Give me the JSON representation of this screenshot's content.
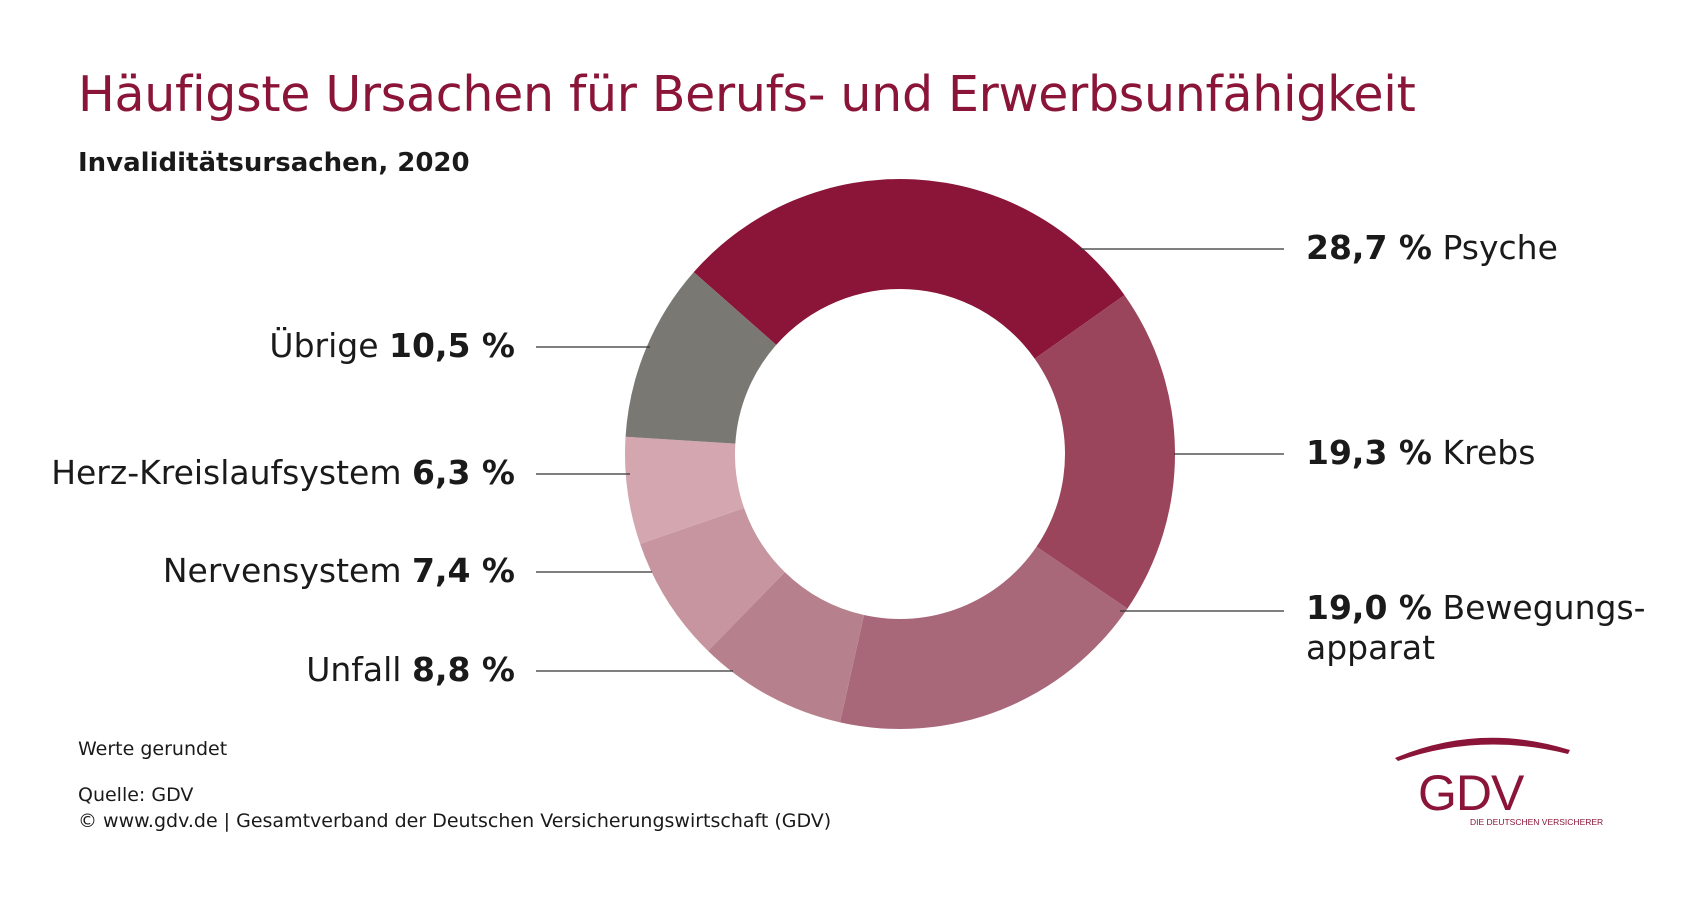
{
  "title": "Häufigste Ursachen für Berufs- und Erwerbsunfähigkeit",
  "subtitle": "Invaliditätsursachen, 2020",
  "colors": {
    "title": "#8a1538",
    "slices": [
      "#8a1538",
      "#9b455d",
      "#a8687a",
      "#b7808d",
      "#c6959f",
      "#d4a7b0",
      "#7a7873"
    ]
  },
  "chart_data": {
    "type": "pie",
    "categories": [
      "Psyche",
      "Krebs",
      "Bewegungsapparat",
      "Unfall",
      "Nervensystem",
      "Herz-Kreislaufsystem",
      "Übrige"
    ],
    "values": [
      28.7,
      19.3,
      19.0,
      8.8,
      7.4,
      6.3,
      10.5
    ],
    "unit": "%"
  },
  "labels": {
    "psyche": {
      "pct": "28,7 %",
      "name": "Psyche"
    },
    "krebs": {
      "pct": "19,3 %",
      "name": "Krebs"
    },
    "bewegung": {
      "pct": "19,0 %",
      "name": "Bewegungs-",
      "name2": "apparat"
    },
    "unfall": {
      "pct": "8,8 %",
      "name": "Unfall"
    },
    "nerven": {
      "pct": "7,4 %",
      "name": "Nervensystem"
    },
    "herz": {
      "pct": "6,3 %",
      "name": "Herz-Kreislaufsystem"
    },
    "uebrige": {
      "pct": "10,5 %",
      "name": "Übrige"
    }
  },
  "footer": {
    "note": "Werte gerundet",
    "source": "Quelle: GDV",
    "copyright": "© www.gdv.de | Gesamtverband der Deutschen Versicherungswirtschaft (GDV)"
  },
  "logo": {
    "wordmark": "GDV",
    "tagline": "DIE DEUTSCHEN VERSICHERER"
  }
}
